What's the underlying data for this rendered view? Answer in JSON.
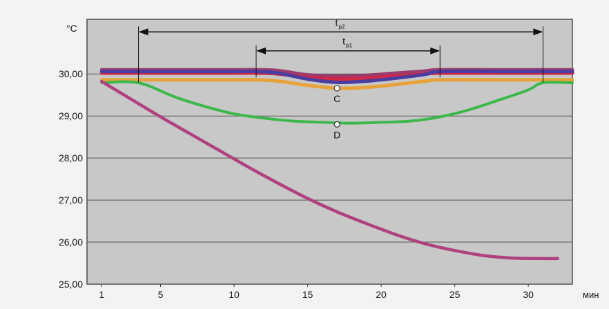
{
  "chart_data": {
    "type": "line",
    "yunit": "°C",
    "xunit": "мин",
    "xticks": [
      1,
      5,
      10,
      15,
      20,
      25,
      30
    ],
    "yticks": [
      25.0,
      26.0,
      27.0,
      28.0,
      29.0,
      30.0
    ],
    "ytick_labels": [
      "25,00",
      "26,00",
      "27,00",
      "28,00",
      "29,00",
      "30,00"
    ],
    "xlim": [
      0,
      33
    ],
    "ylim": [
      25.0,
      31.3
    ],
    "grid": "horizontal",
    "series": [
      {
        "color": "#e8a23a",
        "x": [
          1,
          10,
          11.5,
          13,
          15,
          17,
          19,
          21,
          23,
          24,
          28,
          33
        ],
        "y": [
          29.86,
          29.86,
          29.86,
          29.83,
          29.73,
          29.66,
          29.68,
          29.75,
          29.83,
          29.86,
          29.86,
          29.86
        ]
      },
      {
        "color": "#9a3b6e",
        "x": [
          1,
          10,
          11.5,
          13,
          15,
          17,
          19,
          21,
          23,
          24,
          28,
          33
        ],
        "y": [
          30.1,
          30.1,
          30.1,
          30.08,
          29.98,
          29.95,
          29.97,
          30.02,
          30.07,
          30.1,
          30.1,
          30.1
        ]
      },
      {
        "color": "#d02846",
        "x": [
          1,
          10,
          11.5,
          13,
          15,
          17,
          19,
          21,
          23,
          24,
          28,
          33
        ],
        "y": [
          30.02,
          30.02,
          30.02,
          30.0,
          29.92,
          29.88,
          29.9,
          29.95,
          30.0,
          30.02,
          30.02,
          30.02
        ]
      },
      {
        "color": "#4a3da0",
        "x": [
          1,
          10,
          11.5,
          13,
          15,
          17,
          19,
          21,
          23,
          24,
          28,
          33
        ],
        "y": [
          30.06,
          30.06,
          30.06,
          30.02,
          29.88,
          29.8,
          29.83,
          29.9,
          29.99,
          30.06,
          30.06,
          30.06
        ]
      },
      {
        "color": "#3cb84a",
        "x": [
          1,
          3.5,
          6,
          8,
          10,
          12,
          14,
          16,
          18,
          20,
          22,
          24,
          26,
          28,
          30,
          31,
          33
        ],
        "y": [
          29.79,
          29.79,
          29.45,
          29.23,
          29.05,
          28.95,
          28.88,
          28.85,
          28.83,
          28.85,
          28.88,
          28.98,
          29.15,
          29.38,
          29.62,
          29.79,
          29.79
        ]
      },
      {
        "color": "#b0417f",
        "x": [
          1,
          3,
          5,
          7,
          9,
          11,
          13,
          15,
          17,
          19,
          21,
          23,
          25,
          27,
          29,
          31,
          32
        ],
        "y": [
          29.82,
          29.4,
          28.98,
          28.58,
          28.18,
          27.78,
          27.4,
          27.04,
          26.72,
          26.44,
          26.18,
          25.96,
          25.8,
          25.68,
          25.62,
          25.61,
          25.61
        ]
      }
    ],
    "annotations": [
      {
        "text": "C",
        "x": 17,
        "y": 29.66
      },
      {
        "text": "D",
        "x": 17,
        "y": 28.8
      }
    ],
    "intervals": [
      {
        "label": "t",
        "sub": "p2",
        "from": 3.5,
        "to": 31,
        "y": 31.0
      },
      {
        "label": "t",
        "sub": "p1",
        "from": 11.5,
        "to": 24,
        "y": 30.55
      }
    ]
  }
}
